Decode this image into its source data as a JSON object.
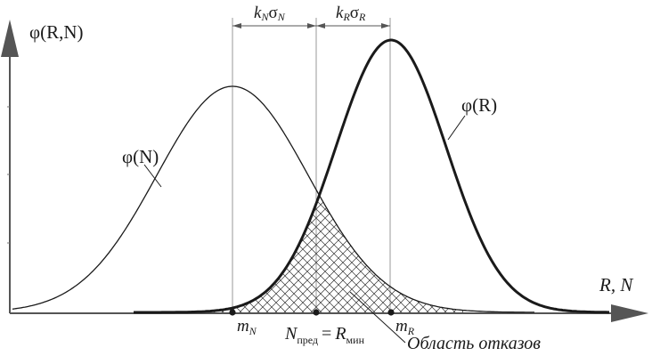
{
  "labels": {
    "y_axis": "φ(R,N)",
    "x_axis": "R, N",
    "curve_n": "φ(N)",
    "curve_r": "φ(R)",
    "mean_n": "m",
    "mean_n_sub": "N",
    "mean_r": "m",
    "mean_r_sub": "R",
    "limit_left": "N",
    "limit_left_sub": "пред",
    "limit_eq": "=",
    "limit_right": "R",
    "limit_right_sub": "мин",
    "k_n": "k",
    "k_n_sub": "N",
    "sigma_n": "σ",
    "sigma_n_sub": "N",
    "k_r": "k",
    "k_r_sub": "R",
    "sigma_r": "σ",
    "sigma_r_sub": "R",
    "failure_region": "Область отказов"
  },
  "colors": {
    "ink": "#1a1a1a",
    "guide": "#9a9a9a",
    "axis": "#555555",
    "hatch": "#333333"
  }
}
